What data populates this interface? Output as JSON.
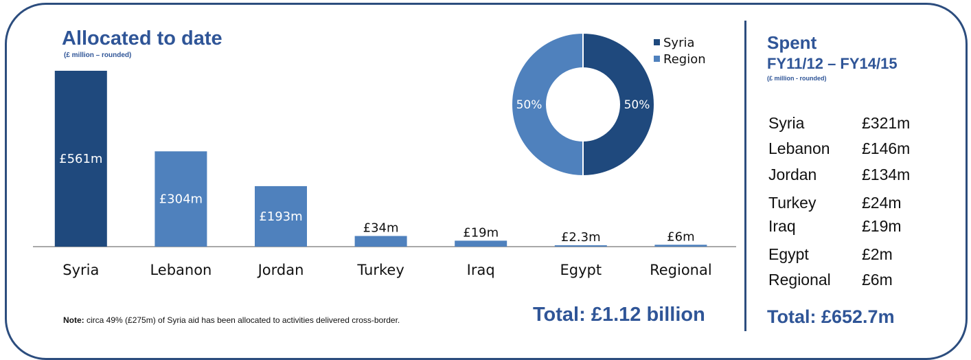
{
  "colors": {
    "syria": "#1f497d",
    "region": "#4f81bd",
    "accent": "#2f5597",
    "frame": "#2c4d7e"
  },
  "allocated": {
    "title": "Allocated to date",
    "subtitle": "(£ million – rounded)",
    "note_label": "Note:",
    "note_text": " circa 49% (£275m) of Syria aid has been allocated to activities delivered cross-border.",
    "total": "Total: £1.12 billion"
  },
  "chart_data": [
    {
      "type": "bar",
      "categories": [
        "Syria",
        "Lebanon",
        "Jordan",
        "Turkey",
        "Iraq",
        "Egypt",
        "Regional"
      ],
      "values": [
        561,
        304,
        193,
        34,
        19,
        2.3,
        6
      ],
      "data_labels": [
        "£561m",
        "£304m",
        "£193m",
        "£34m",
        "£19m",
        "£2.3m",
        "£6m"
      ],
      "ylim": [
        0,
        561
      ],
      "grid": false
    },
    {
      "type": "pie",
      "labels": [
        "Syria",
        "Region"
      ],
      "values": [
        50,
        50
      ],
      "data_labels": [
        "50%",
        "50%"
      ],
      "donut": true,
      "legend": "top-right"
    }
  ],
  "spent": {
    "title": "Spent",
    "period": "FY11/12 – FY14/15",
    "subtitle": "(£ million -  rounded)",
    "rows": [
      {
        "country": "Syria",
        "value": "£321m"
      },
      {
        "country": "Lebanon",
        "value": "£146m"
      },
      {
        "country": "Jordan",
        "value": "£134m"
      },
      {
        "country": "Turkey",
        "value": "£24m"
      },
      {
        "country": "Iraq",
        "value": "£19m"
      },
      {
        "country": "Egypt",
        "value": "£2m"
      },
      {
        "country": "Regional",
        "value": "£6m"
      }
    ],
    "total": "Total: £652.7m"
  }
}
